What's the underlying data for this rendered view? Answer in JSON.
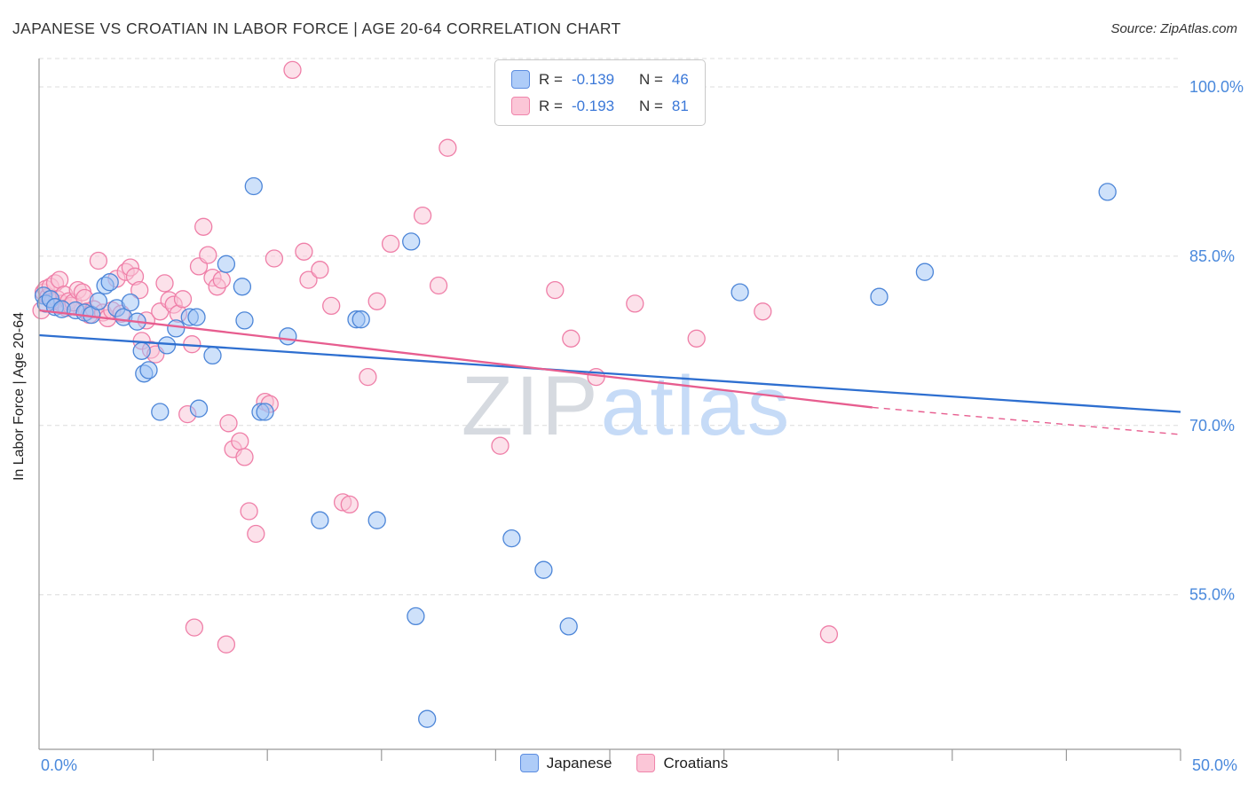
{
  "header": {
    "title": "JAPANESE VS CROATIAN IN LABOR FORCE | AGE 20-64 CORRELATION CHART",
    "source": "Source: ZipAtlas.com"
  },
  "legend_box": {
    "rows": [
      {
        "series": "Japanese",
        "r_label": "R =",
        "r_value": "-0.139",
        "n_label": "N =",
        "n_value": "46"
      },
      {
        "series": "Croatians",
        "r_label": "R =",
        "r_value": "-0.193",
        "n_label": "N =",
        "n_value": "81"
      }
    ]
  },
  "bottom_legend": {
    "items": [
      {
        "label": "Japanese"
      },
      {
        "label": "Croatians"
      }
    ]
  },
  "watermark": {
    "part1": "ZIP",
    "part2": "atlas"
  },
  "axes": {
    "y_label": "In Labor Force | Age 20-64",
    "x_min_label": "0.0%",
    "x_max_label": "50.0%",
    "y_tick_labels": [
      "100.0%",
      "85.0%",
      "70.0%",
      "55.0%"
    ],
    "y_tick_values": [
      100,
      85,
      70,
      55
    ]
  },
  "colors": {
    "axis_blue": "#4a89dc",
    "gridline": "#dcdcdc",
    "axis_line": "#999999",
    "japanese_fill": "#9ec3f5",
    "japanese_stroke": "#4d86d8",
    "croatian_fill": "#fac3d5",
    "croatian_stroke": "#ef7fa8",
    "japanese_trend": "#2e6fd0",
    "croatian_trend": "#e75d8f",
    "watermark_gray": "#d6dae0",
    "watermark_blue": "#c6dbf7"
  },
  "chart_data": {
    "type": "scatter",
    "x_range": [
      0,
      50
    ],
    "y_gridlines": [
      100,
      85,
      70,
      55
    ],
    "x_ticks": [
      5,
      10,
      15,
      20,
      25,
      30,
      35,
      40,
      45,
      50
    ],
    "legend_position": "bottom-center",
    "series": [
      {
        "name": "Japanese",
        "r": -0.139,
        "n": 46,
        "points": [
          [
            0.2,
            81.5
          ],
          [
            0.3,
            80.8
          ],
          [
            0.5,
            81.2
          ],
          [
            0.7,
            80.5
          ],
          [
            1.0,
            80.3
          ],
          [
            1.6,
            80.2
          ],
          [
            2.0,
            80.0
          ],
          [
            2.3,
            79.8
          ],
          [
            2.6,
            81.0
          ],
          [
            2.9,
            82.4
          ],
          [
            3.1,
            82.7
          ],
          [
            3.4,
            80.4
          ],
          [
            3.7,
            79.6
          ],
          [
            4.0,
            80.9
          ],
          [
            4.3,
            79.2
          ],
          [
            4.5,
            76.6
          ],
          [
            4.6,
            74.6
          ],
          [
            4.8,
            74.9
          ],
          [
            5.3,
            71.2
          ],
          [
            5.6,
            77.1
          ],
          [
            6.0,
            78.6
          ],
          [
            6.6,
            79.6
          ],
          [
            6.9,
            79.6
          ],
          [
            7.0,
            71.5
          ],
          [
            7.6,
            76.2
          ],
          [
            8.2,
            84.3
          ],
          [
            8.9,
            82.3
          ],
          [
            9.0,
            79.3
          ],
          [
            9.4,
            91.2
          ],
          [
            9.7,
            71.2
          ],
          [
            9.9,
            71.2
          ],
          [
            10.9,
            77.9
          ],
          [
            12.3,
            61.6
          ],
          [
            13.9,
            79.4
          ],
          [
            14.1,
            79.4
          ],
          [
            14.8,
            61.6
          ],
          [
            16.3,
            86.3
          ],
          [
            16.5,
            53.1
          ],
          [
            17.0,
            44.0
          ],
          [
            20.7,
            60.0
          ],
          [
            22.1,
            57.2
          ],
          [
            23.2,
            52.2
          ],
          [
            30.7,
            81.8
          ],
          [
            36.8,
            81.4
          ],
          [
            38.8,
            83.6
          ],
          [
            46.8,
            90.7
          ]
        ]
      },
      {
        "name": "Croatians",
        "r": -0.193,
        "n": 81,
        "points": [
          [
            0.1,
            80.2
          ],
          [
            0.2,
            81.8
          ],
          [
            0.3,
            82.1
          ],
          [
            0.4,
            81.4
          ],
          [
            0.5,
            82.3
          ],
          [
            0.6,
            81.0
          ],
          [
            0.7,
            82.6
          ],
          [
            0.8,
            81.2
          ],
          [
            0.9,
            82.9
          ],
          [
            1.0,
            80.8
          ],
          [
            1.1,
            81.6
          ],
          [
            1.2,
            80.4
          ],
          [
            1.3,
            81.0
          ],
          [
            1.4,
            80.6
          ],
          [
            1.5,
            80.9
          ],
          [
            1.7,
            82.0
          ],
          [
            1.9,
            81.8
          ],
          [
            2.0,
            81.3
          ],
          [
            2.1,
            80.1
          ],
          [
            2.2,
            79.8
          ],
          [
            2.4,
            80.3
          ],
          [
            2.6,
            84.6
          ],
          [
            2.8,
            80.0
          ],
          [
            3.0,
            79.5
          ],
          [
            3.2,
            80.2
          ],
          [
            3.4,
            83.0
          ],
          [
            3.6,
            79.9
          ],
          [
            3.8,
            83.6
          ],
          [
            4.0,
            84.0
          ],
          [
            4.2,
            83.2
          ],
          [
            4.4,
            82.0
          ],
          [
            4.5,
            77.5
          ],
          [
            4.7,
            79.3
          ],
          [
            4.9,
            76.7
          ],
          [
            5.1,
            76.3
          ],
          [
            5.3,
            80.1
          ],
          [
            5.5,
            82.6
          ],
          [
            5.7,
            81.1
          ],
          [
            5.9,
            80.7
          ],
          [
            6.1,
            79.9
          ],
          [
            6.3,
            81.2
          ],
          [
            6.5,
            71.0
          ],
          [
            6.7,
            77.2
          ],
          [
            6.8,
            52.1
          ],
          [
            7.0,
            84.1
          ],
          [
            7.2,
            87.6
          ],
          [
            7.4,
            85.1
          ],
          [
            7.6,
            83.1
          ],
          [
            7.8,
            82.3
          ],
          [
            8.0,
            82.9
          ],
          [
            8.2,
            50.6
          ],
          [
            8.3,
            70.2
          ],
          [
            8.5,
            67.9
          ],
          [
            8.8,
            68.6
          ],
          [
            9.0,
            67.2
          ],
          [
            9.2,
            62.4
          ],
          [
            9.5,
            60.4
          ],
          [
            9.9,
            72.1
          ],
          [
            10.1,
            71.9
          ],
          [
            10.3,
            84.8
          ],
          [
            11.1,
            101.5
          ],
          [
            11.6,
            85.4
          ],
          [
            11.8,
            82.9
          ],
          [
            12.3,
            83.8
          ],
          [
            12.8,
            80.6
          ],
          [
            13.3,
            63.2
          ],
          [
            13.6,
            63.0
          ],
          [
            14.4,
            74.3
          ],
          [
            14.8,
            81.0
          ],
          [
            15.4,
            86.1
          ],
          [
            16.8,
            88.6
          ],
          [
            17.5,
            82.4
          ],
          [
            17.9,
            94.6
          ],
          [
            20.2,
            68.2
          ],
          [
            22.6,
            82.0
          ],
          [
            23.3,
            77.7
          ],
          [
            24.4,
            74.3
          ],
          [
            26.1,
            80.8
          ],
          [
            28.8,
            77.7
          ],
          [
            31.7,
            80.1
          ],
          [
            34.6,
            51.5
          ]
        ]
      }
    ],
    "trend_lines": [
      {
        "series": "Japanese",
        "x1": 0,
        "y1": 78.0,
        "x2": 50,
        "y2": 71.2,
        "style": "solid"
      },
      {
        "series": "Croatians",
        "x1": 0,
        "y1": 80.2,
        "x2": 36.5,
        "y2": 71.6,
        "style": "solid"
      },
      {
        "series": "Croatians",
        "x1": 36.5,
        "y1": 71.6,
        "x2": 50,
        "y2": 69.2,
        "style": "dashed"
      }
    ]
  }
}
